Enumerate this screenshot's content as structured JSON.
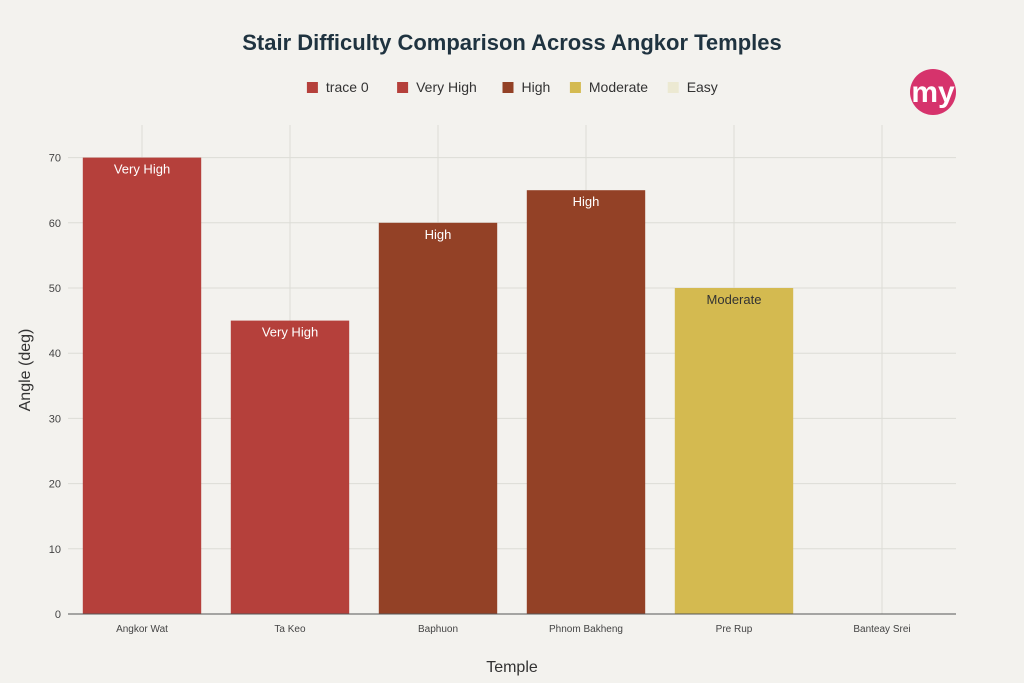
{
  "chart_data": {
    "type": "bar",
    "title": "Stair Difficulty Comparison Across Angkor Temples",
    "xlabel": "Temple",
    "ylabel": "Angle (deg)",
    "categories": [
      "Angkor Wat",
      "Ta Keo",
      "Baphuon",
      "Phnom Bakheng",
      "Pre Rup",
      "Banteay Srei"
    ],
    "values": [
      70,
      45,
      60,
      65,
      50,
      0
    ],
    "bar_labels": [
      "Very High",
      "Very High",
      "High",
      "High",
      "Moderate",
      ""
    ],
    "bar_colors": [
      "#b5403b",
      "#b5403b",
      "#934126",
      "#934126",
      "#d4ba50",
      "#ece9d2"
    ],
    "label_colors": [
      "#ffffff",
      "#ffffff",
      "#ffffff",
      "#ffffff",
      "#333333",
      "#333333"
    ],
    "ylim": [
      0,
      75
    ],
    "yticks": [
      0,
      10,
      20,
      30,
      40,
      50,
      60,
      70
    ],
    "grid": true,
    "legend": {
      "placement": "top-center",
      "entries": [
        {
          "label": "trace 0",
          "color": "#b5403b"
        },
        {
          "label": "Very High",
          "color": "#b5403b"
        },
        {
          "label": "High",
          "color": "#934126"
        },
        {
          "label": "Moderate",
          "color": "#d4ba50"
        },
        {
          "label": "Easy",
          "color": "#ece9d2"
        }
      ]
    }
  },
  "logo": {
    "text": "my",
    "color": "#d6336c"
  }
}
